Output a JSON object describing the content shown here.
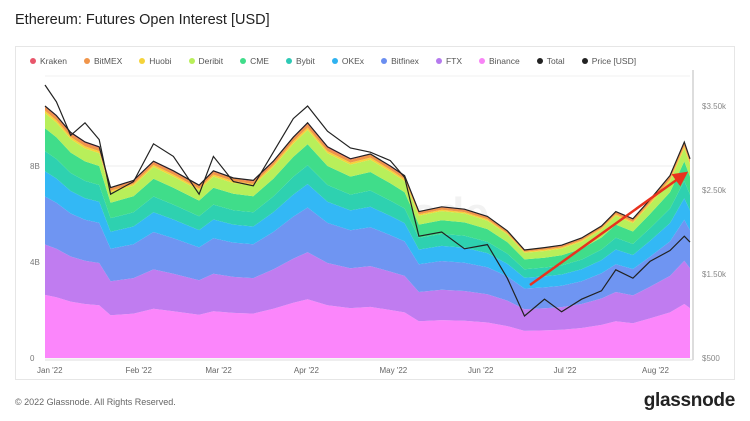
{
  "header": {
    "title": "Ethereum: Futures Open Interest [USD]"
  },
  "footer": {
    "copyright": "© 2022 Glassnode. All Rights Reserved.",
    "logo": "glassnode",
    "watermark": "glassnode"
  },
  "chart_data": {
    "type": "area",
    "stacked": true,
    "title": "Ethereum: Futures Open Interest [USD]",
    "legend_placement": "top",
    "grid": true,
    "x": [
      "2022-01-01",
      "2022-01-05",
      "2022-01-10",
      "2022-01-15",
      "2022-01-20",
      "2022-01-24",
      "2022-02-01",
      "2022-02-08",
      "2022-02-15",
      "2022-02-24",
      "2022-03-01",
      "2022-03-08",
      "2022-03-15",
      "2022-03-22",
      "2022-03-29",
      "2022-04-03",
      "2022-04-10",
      "2022-04-18",
      "2022-04-25",
      "2022-05-02",
      "2022-05-07",
      "2022-05-12",
      "2022-05-20",
      "2022-05-28",
      "2022-06-05",
      "2022-06-12",
      "2022-06-18",
      "2022-06-25",
      "2022-07-01",
      "2022-07-08",
      "2022-07-15",
      "2022-07-20",
      "2022-07-26",
      "2022-08-01",
      "2022-08-08",
      "2022-08-13",
      "2022-08-15"
    ],
    "x_ticks": [
      "Jan '22",
      "Feb '22",
      "Mar '22",
      "Apr '22",
      "May '22",
      "Jun '22",
      "Jul '22",
      "Aug '22"
    ],
    "y_left": {
      "ticks": [
        "0",
        "4B",
        "8B"
      ],
      "tick_values": [
        0,
        4,
        8
      ],
      "range": [
        0,
        12
      ],
      "unit": "B USD"
    },
    "y_right": {
      "ticks": [
        "$500",
        "$1.50k",
        "$2.50k",
        "$3.50k"
      ],
      "tick_values": [
        500,
        1500,
        2500,
        3500
      ],
      "range": [
        500,
        3930
      ]
    },
    "series": [
      {
        "name": "Binance",
        "color": "#fb86fb",
        "values": [
          2.63,
          2.53,
          2.35,
          2.25,
          2.2,
          1.78,
          1.85,
          2.05,
          1.95,
          1.8,
          1.95,
          1.88,
          1.85,
          2.05,
          2.3,
          2.45,
          2.2,
          2.08,
          2.13,
          2.0,
          1.9,
          1.53,
          1.58,
          1.55,
          1.48,
          1.33,
          1.13,
          1.15,
          1.18,
          1.25,
          1.38,
          1.53,
          1.45,
          1.65,
          1.9,
          2.25,
          2.08
        ]
      },
      {
        "name": "FTX",
        "color": "#c07cf0",
        "values": [
          2.1,
          2.02,
          1.88,
          1.8,
          1.76,
          1.42,
          1.48,
          1.64,
          1.56,
          1.44,
          1.56,
          1.5,
          1.48,
          1.64,
          1.84,
          1.96,
          1.76,
          1.66,
          1.7,
          1.6,
          1.52,
          1.22,
          1.26,
          1.24,
          1.18,
          1.06,
          0.9,
          0.92,
          0.94,
          1.0,
          1.1,
          1.22,
          1.16,
          1.32,
          1.52,
          1.8,
          1.66
        ]
      },
      {
        "name": "Bitfinex",
        "color": "#6f95f2",
        "values": [
          2.0,
          1.92,
          1.79,
          1.71,
          1.67,
          1.35,
          1.41,
          1.56,
          1.48,
          1.37,
          1.48,
          1.43,
          1.41,
          1.56,
          1.75,
          1.86,
          1.67,
          1.58,
          1.62,
          1.52,
          1.44,
          1.16,
          1.2,
          1.18,
          1.12,
          1.01,
          0.86,
          0.87,
          0.89,
          0.95,
          1.05,
          1.16,
          1.1,
          1.25,
          1.44,
          1.71,
          1.58
        ]
      },
      {
        "name": "OKEx",
        "color": "#33b8f5",
        "values": [
          1.05,
          1.01,
          0.94,
          0.9,
          0.88,
          0.71,
          0.74,
          0.82,
          0.78,
          0.72,
          0.78,
          0.75,
          0.74,
          0.82,
          0.92,
          0.98,
          0.88,
          0.83,
          0.85,
          0.8,
          0.76,
          0.61,
          0.63,
          0.62,
          0.59,
          0.53,
          0.45,
          0.46,
          0.47,
          0.5,
          0.55,
          0.61,
          0.58,
          0.66,
          0.76,
          0.9,
          0.83
        ]
      },
      {
        "name": "Bybit",
        "color": "#2ed1b0",
        "values": [
          0.84,
          0.81,
          0.75,
          0.72,
          0.7,
          0.57,
          0.59,
          0.66,
          0.62,
          0.58,
          0.62,
          0.6,
          0.59,
          0.66,
          0.74,
          0.78,
          0.7,
          0.66,
          0.68,
          0.64,
          0.61,
          0.49,
          0.5,
          0.5,
          0.47,
          0.42,
          0.36,
          0.37,
          0.38,
          0.4,
          0.44,
          0.49,
          0.46,
          0.53,
          0.61,
          0.72,
          0.66
        ]
      },
      {
        "name": "CME",
        "color": "#40dd8a",
        "values": [
          0.95,
          0.91,
          0.85,
          0.81,
          0.79,
          0.64,
          0.67,
          0.74,
          0.7,
          0.65,
          0.7,
          0.68,
          0.67,
          0.74,
          0.83,
          0.88,
          0.79,
          0.75,
          0.77,
          0.72,
          0.68,
          0.55,
          0.57,
          0.56,
          0.53,
          0.48,
          0.41,
          0.41,
          0.42,
          0.45,
          0.5,
          0.55,
          0.52,
          0.59,
          0.68,
          0.81,
          0.75
        ]
      },
      {
        "name": "Deribit",
        "color": "#b8ef5a",
        "values": [
          0.63,
          0.61,
          0.56,
          0.54,
          0.53,
          0.43,
          0.44,
          0.49,
          0.47,
          0.43,
          0.47,
          0.45,
          0.44,
          0.49,
          0.55,
          0.59,
          0.53,
          0.5,
          0.51,
          0.48,
          0.46,
          0.37,
          0.38,
          0.37,
          0.35,
          0.32,
          0.27,
          0.28,
          0.28,
          0.3,
          0.33,
          0.37,
          0.35,
          0.4,
          0.46,
          0.54,
          0.5
        ]
      },
      {
        "name": "Huobi",
        "color": "#f5d33a",
        "values": [
          0.1,
          0.1,
          0.09,
          0.09,
          0.09,
          0.07,
          0.07,
          0.08,
          0.08,
          0.07,
          0.08,
          0.08,
          0.07,
          0.08,
          0.09,
          0.1,
          0.09,
          0.08,
          0.09,
          0.08,
          0.08,
          0.06,
          0.06,
          0.06,
          0.06,
          0.05,
          0.05,
          0.05,
          0.05,
          0.05,
          0.06,
          0.06,
          0.06,
          0.07,
          0.08,
          0.09,
          0.08
        ]
      },
      {
        "name": "BitMEX",
        "color": "#f0954a",
        "values": [
          0.16,
          0.15,
          0.14,
          0.14,
          0.13,
          0.11,
          0.11,
          0.12,
          0.12,
          0.11,
          0.12,
          0.11,
          0.11,
          0.12,
          0.14,
          0.15,
          0.13,
          0.12,
          0.13,
          0.12,
          0.11,
          0.09,
          0.09,
          0.09,
          0.09,
          0.08,
          0.07,
          0.07,
          0.07,
          0.08,
          0.08,
          0.09,
          0.09,
          0.1,
          0.11,
          0.14,
          0.12
        ]
      },
      {
        "name": "Kraken",
        "color": "#e8566b",
        "values": [
          0.05,
          0.05,
          0.05,
          0.05,
          0.04,
          0.04,
          0.04,
          0.04,
          0.04,
          0.04,
          0.04,
          0.04,
          0.04,
          0.04,
          0.05,
          0.05,
          0.04,
          0.04,
          0.04,
          0.04,
          0.04,
          0.03,
          0.03,
          0.03,
          0.03,
          0.03,
          0.02,
          0.02,
          0.02,
          0.03,
          0.03,
          0.03,
          0.03,
          0.03,
          0.04,
          0.05,
          0.04
        ]
      }
    ],
    "total": {
      "name": "Total",
      "color": "#222222",
      "values": [
        10.5,
        10.1,
        9.4,
        9.0,
        8.8,
        7.1,
        7.4,
        8.2,
        7.8,
        7.2,
        7.8,
        7.5,
        7.4,
        8.2,
        9.2,
        9.8,
        8.8,
        8.3,
        8.5,
        8.0,
        7.6,
        6.1,
        6.3,
        6.2,
        5.9,
        5.3,
        4.5,
        4.6,
        4.7,
        5.0,
        5.5,
        6.1,
        5.8,
        6.6,
        7.6,
        9.0,
        8.3
      ]
    },
    "price": {
      "name": "Price [USD]",
      "color": "#222222",
      "axis": "right",
      "values": [
        3750,
        3550,
        3150,
        3300,
        3100,
        2450,
        2600,
        3050,
        2900,
        2450,
        2900,
        2600,
        2550,
        2950,
        3350,
        3500,
        3200,
        3000,
        2950,
        2850,
        2650,
        1950,
        2000,
        1800,
        1850,
        1450,
        1000,
        1200,
        1050,
        1200,
        1300,
        1550,
        1450,
        1650,
        1780,
        1950,
        1880
      ]
    },
    "legend": [
      "Kraken",
      "BitMEX",
      "Huobi",
      "Deribit",
      "CME",
      "Bybit",
      "OKEx",
      "Bitfinex",
      "FTX",
      "Binance",
      "Total",
      "Price [USD]"
    ],
    "legend_colors": [
      "#e8566b",
      "#f0954a",
      "#f5d33a",
      "#b8ef5a",
      "#40dd8a",
      "#2ec9b5",
      "#2fb2f0",
      "#6a8ef0",
      "#b57aee",
      "#f884f6",
      "#222222",
      "#222222"
    ],
    "annotations": [
      {
        "type": "arrow",
        "color": "#e8321e"
      }
    ]
  }
}
